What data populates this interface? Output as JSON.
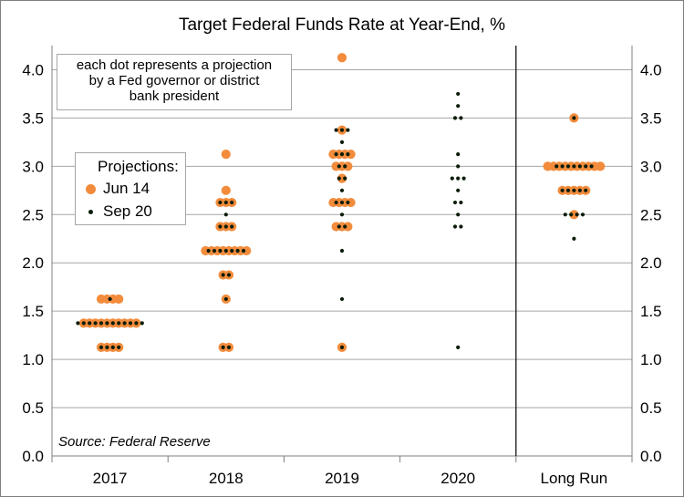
{
  "chart_data": {
    "type": "scatter",
    "title": "Target Federal Funds Rate at Year-End, %",
    "categories": [
      "2017",
      "2018",
      "2019",
      "2020",
      "Long Run"
    ],
    "ylim": [
      0,
      4.25
    ],
    "yticks": [
      "0.0",
      "0.5",
      "1.0",
      "1.5",
      "2.0",
      "2.5",
      "3.0",
      "3.5",
      "4.0"
    ],
    "grid": true,
    "legend_title": "Projections:",
    "legend_position": "top-left",
    "series": [
      {
        "name": "Jun 14",
        "color": "#f28c3c",
        "values": [
          [
            [
              1.625,
              4
            ],
            [
              1.375,
              10
            ],
            [
              1.125,
              4
            ]
          ],
          [
            [
              3.125,
              1
            ],
            [
              2.75,
              1
            ],
            [
              2.625,
              3
            ],
            [
              2.375,
              3
            ],
            [
              2.125,
              8
            ],
            [
              1.875,
              2
            ],
            [
              1.625,
              1
            ],
            [
              1.125,
              2
            ]
          ],
          [
            [
              4.125,
              1
            ],
            [
              3.375,
              1
            ],
            [
              3.125,
              4
            ],
            [
              3.0,
              3
            ],
            [
              2.875,
              1
            ],
            [
              2.625,
              4
            ],
            [
              2.375,
              3
            ],
            [
              1.125,
              1
            ]
          ],
          [],
          [
            [
              3.5,
              1
            ],
            [
              3.0,
              10
            ],
            [
              2.75,
              5
            ],
            [
              2.5,
              1
            ]
          ]
        ]
      },
      {
        "name": "Sep 20",
        "color": "#0b1d0b",
        "values": [
          [
            [
              1.625,
              1
            ],
            [
              1.375,
              12
            ],
            [
              1.125,
              4
            ]
          ],
          [
            [
              2.625,
              3
            ],
            [
              2.5,
              1
            ],
            [
              2.375,
              3
            ],
            [
              2.125,
              7
            ],
            [
              1.875,
              2
            ],
            [
              1.625,
              1
            ],
            [
              1.125,
              2
            ]
          ],
          [
            [
              3.375,
              3
            ],
            [
              3.25,
              1
            ],
            [
              3.125,
              3
            ],
            [
              3.0,
              2
            ],
            [
              2.875,
              2
            ],
            [
              2.75,
              1
            ],
            [
              2.625,
              3
            ],
            [
              2.5,
              1
            ],
            [
              2.375,
              2
            ],
            [
              2.125,
              1
            ],
            [
              1.625,
              1
            ],
            [
              1.125,
              1
            ]
          ],
          [
            [
              3.75,
              1
            ],
            [
              3.625,
              1
            ],
            [
              3.5,
              2
            ],
            [
              3.125,
              1
            ],
            [
              3.0,
              1
            ],
            [
              2.875,
              3
            ],
            [
              2.75,
              1
            ],
            [
              2.625,
              2
            ],
            [
              2.5,
              1
            ],
            [
              2.375,
              2
            ],
            [
              1.125,
              1
            ]
          ],
          [
            [
              3.5,
              1
            ],
            [
              3.0,
              7
            ],
            [
              2.75,
              5
            ],
            [
              2.5,
              4
            ],
            [
              2.25,
              1
            ]
          ]
        ]
      }
    ],
    "note_lines": [
      "each dot represents a projection",
      "by a Fed governor or district",
      "bank president"
    ],
    "source": "Source: Federal Reserve"
  }
}
